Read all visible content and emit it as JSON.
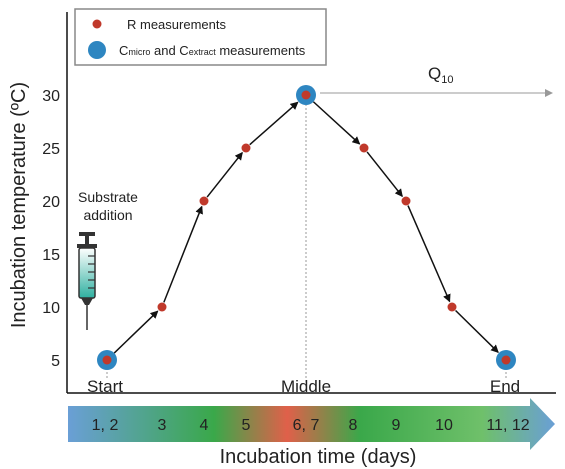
{
  "legend": {
    "r_label": "R measurements",
    "c_label_parts": [
      "C",
      "micro",
      " and C",
      "extract",
      " measurements"
    ]
  },
  "y_axis": {
    "label": "Incubation temperature (ºC)",
    "ticks": [
      "5",
      "10",
      "15",
      "20",
      "25",
      "30"
    ]
  },
  "x_axis": {
    "label": "Incubation time (days)",
    "arrow_labels": [
      "1, 2",
      "3",
      "4",
      "5",
      "6, 7",
      "8",
      "9",
      "10",
      "11, 12"
    ]
  },
  "annotations": {
    "substrate_line1": "Substrate",
    "substrate_line2": "addition",
    "start": "Start",
    "middle": "Middle",
    "end": "End",
    "q10_main": "Q",
    "q10_sub": "10"
  },
  "colors": {
    "r_marker": "#c0392b",
    "c_marker": "#2e86c1",
    "arrow_cold": "#6a9fd6",
    "arrow_warm": "#3aa84a",
    "arrow_hot": "#e0604a"
  },
  "chart_data": {
    "type": "line",
    "x": [
      "1, 2",
      "3",
      "4",
      "5",
      "6, 7",
      "8",
      "9",
      "10",
      "11, 12"
    ],
    "y": [
      5,
      10,
      20,
      25,
      30,
      25,
      20,
      10,
      5
    ],
    "c_measurement_points": [
      "1, 2",
      "6, 7",
      "11, 12"
    ],
    "ylim": [
      5,
      30
    ],
    "ylabel": "Incubation temperature (ºC)",
    "xlabel": "Incubation time (days)"
  }
}
